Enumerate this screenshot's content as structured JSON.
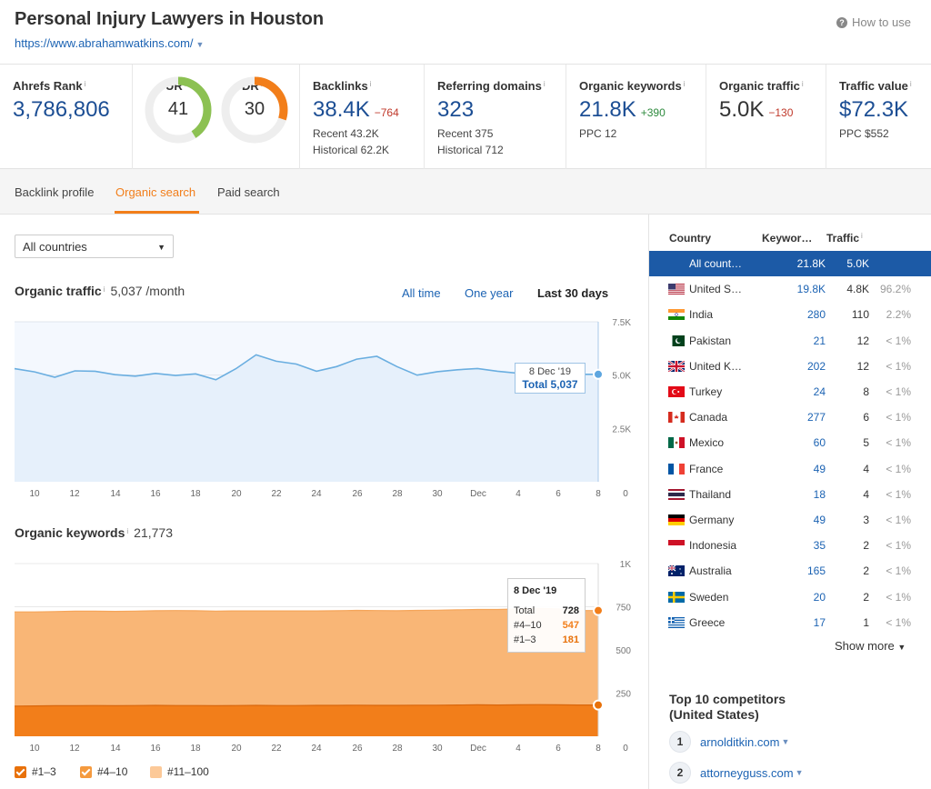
{
  "header": {
    "title": "Personal Injury Lawyers in Houston",
    "url": "https://www.abrahamwatkins.com/",
    "how_to_use": "How to use"
  },
  "metrics": {
    "ahrefs_rank": {
      "label": "Ahrefs Rank",
      "value": "3,786,806"
    },
    "ur": {
      "label": "UR",
      "value": "41",
      "score": 41,
      "color": "#8cc152"
    },
    "dr": {
      "label": "DR",
      "value": "30",
      "score": 30,
      "color": "#f27e1a"
    },
    "backlinks": {
      "label": "Backlinks",
      "value": "38.4K",
      "delta": "−764",
      "recent": "Recent 43.2K",
      "historical": "Historical 62.2K"
    },
    "referring_domains": {
      "label": "Referring domains",
      "value": "323",
      "recent": "Recent 375",
      "historical": "Historical 712"
    },
    "organic_keywords": {
      "label": "Organic keywords",
      "value": "21.8K",
      "delta": "+390",
      "ppc": "PPC 12"
    },
    "organic_traffic": {
      "label": "Organic traffic",
      "value": "5.0K",
      "delta": "−130"
    },
    "traffic_value": {
      "label": "Traffic value",
      "value": "$72.3K",
      "ppc": "PPC $552"
    }
  },
  "tabs": [
    {
      "label": "Backlink profile"
    },
    {
      "label": "Organic search",
      "active": true
    },
    {
      "label": "Paid search"
    }
  ],
  "filter": {
    "country_select": "All countries"
  },
  "traffic_section": {
    "title": "Organic traffic",
    "value": "5,037 /month",
    "ranges": [
      "All time",
      "One year",
      "Last 30 days"
    ],
    "selected_range": "Last 30 days",
    "tooltip_date": "8 Dec '19",
    "tooltip_total": "Total 5,037"
  },
  "keywords_section": {
    "title": "Organic keywords",
    "value": "21,773",
    "tooltip_date": "8 Dec '19",
    "tooltip_rows": [
      {
        "label": "Total",
        "value": "728",
        "color": "#222"
      },
      {
        "label": "#4–10",
        "value": "547",
        "color": "#f27e1a"
      },
      {
        "label": "#1–3",
        "value": "181",
        "color": "#e8710a"
      }
    ],
    "legend": [
      "#1–3",
      "#4–10",
      "#11–100"
    ]
  },
  "chart_data": [
    {
      "type": "area",
      "title": "Organic traffic",
      "x": [
        "9",
        "10",
        "11",
        "12",
        "13",
        "14",
        "15",
        "16",
        "17",
        "18",
        "19",
        "20",
        "21",
        "22",
        "23",
        "24",
        "25",
        "26",
        "27",
        "28",
        "29",
        "30",
        "Dec 1",
        "2",
        "3",
        "4",
        "5",
        "6",
        "7",
        "8"
      ],
      "x_ticks": [
        "10",
        "12",
        "14",
        "16",
        "18",
        "20",
        "22",
        "24",
        "26",
        "28",
        "30",
        "Dec",
        "4",
        "6",
        "8",
        "0"
      ],
      "y_ticks": [
        "7.5K",
        "5.0K",
        "2.5K"
      ],
      "ylim": [
        0,
        7500
      ],
      "series": [
        {
          "values": [
            5300,
            5150,
            4900,
            5200,
            5180,
            5020,
            4950,
            5080,
            4980,
            5060,
            4780,
            5300,
            5950,
            5650,
            5520,
            5180,
            5400,
            5750,
            5880,
            5400,
            5000,
            5160,
            5250,
            5310,
            5180,
            5090,
            5037,
            5037,
            5037,
            5037
          ],
          "color": "#6aaee0"
        }
      ]
    },
    {
      "type": "area",
      "title": "Organic keywords",
      "x": [
        "9",
        "10",
        "11",
        "12",
        "13",
        "14",
        "15",
        "16",
        "17",
        "18",
        "19",
        "20",
        "21",
        "22",
        "23",
        "24",
        "25",
        "26",
        "27",
        "28",
        "29",
        "30",
        "Dec 1",
        "2",
        "3",
        "4",
        "5",
        "6",
        "7",
        "8"
      ],
      "x_ticks": [
        "10",
        "12",
        "14",
        "16",
        "18",
        "20",
        "22",
        "24",
        "26",
        "28",
        "30",
        "Dec",
        "4",
        "6",
        "8",
        "0"
      ],
      "y_ticks": [
        "1K",
        "750",
        "500",
        "250"
      ],
      "ylim": [
        0,
        1000
      ],
      "series": [
        {
          "name": "#1–3",
          "values": [
            175,
            176,
            177,
            177,
            178,
            177,
            178,
            179,
            178,
            178,
            177,
            178,
            179,
            178,
            178,
            179,
            179,
            180,
            179,
            179,
            180,
            180,
            181,
            182,
            181,
            182,
            183,
            182,
            181,
            181
          ],
          "color": "#f27e1a"
        },
        {
          "name": "#4–10",
          "values": [
            545,
            544,
            545,
            547,
            546,
            546,
            547,
            548,
            550,
            549,
            548,
            548,
            547,
            548,
            548,
            547,
            548,
            549,
            549,
            548,
            549,
            550,
            551,
            552,
            553,
            555,
            557,
            556,
            547,
            547
          ],
          "color": "#f9b676"
        },
        {
          "name": "#11–100",
          "values": [
            0,
            0,
            0,
            0,
            0,
            0,
            0,
            0,
            0,
            0,
            0,
            0,
            0,
            0,
            0,
            0,
            0,
            0,
            0,
            0,
            0,
            0,
            0,
            0,
            0,
            0,
            0,
            0,
            0,
            0
          ],
          "color": "#fcd9b8"
        }
      ]
    }
  ],
  "countries_table": {
    "headers": [
      "Country",
      "Keywor…",
      "Traffic"
    ],
    "rows": [
      {
        "flag": "none",
        "name": "All count…",
        "keywords": "21.8K",
        "traffic": "5.0K",
        "pct": "",
        "selected": true
      },
      {
        "flag": "us",
        "name": "United S…",
        "keywords": "19.8K",
        "traffic": "4.8K",
        "pct": "96.2%"
      },
      {
        "flag": "in",
        "name": "India",
        "keywords": "280",
        "traffic": "110",
        "pct": "2.2%"
      },
      {
        "flag": "pk",
        "name": "Pakistan",
        "keywords": "21",
        "traffic": "12",
        "pct": "< 1%"
      },
      {
        "flag": "gb",
        "name": "United K…",
        "keywords": "202",
        "traffic": "12",
        "pct": "< 1%"
      },
      {
        "flag": "tr",
        "name": "Turkey",
        "keywords": "24",
        "traffic": "8",
        "pct": "< 1%"
      },
      {
        "flag": "ca",
        "name": "Canada",
        "keywords": "277",
        "traffic": "6",
        "pct": "< 1%"
      },
      {
        "flag": "mx",
        "name": "Mexico",
        "keywords": "60",
        "traffic": "5",
        "pct": "< 1%"
      },
      {
        "flag": "fr",
        "name": "France",
        "keywords": "49",
        "traffic": "4",
        "pct": "< 1%"
      },
      {
        "flag": "th",
        "name": "Thailand",
        "keywords": "18",
        "traffic": "4",
        "pct": "< 1%"
      },
      {
        "flag": "de",
        "name": "Germany",
        "keywords": "49",
        "traffic": "3",
        "pct": "< 1%"
      },
      {
        "flag": "id",
        "name": "Indonesia",
        "keywords": "35",
        "traffic": "2",
        "pct": "< 1%"
      },
      {
        "flag": "au",
        "name": "Australia",
        "keywords": "165",
        "traffic": "2",
        "pct": "< 1%"
      },
      {
        "flag": "se",
        "name": "Sweden",
        "keywords": "20",
        "traffic": "2",
        "pct": "< 1%"
      },
      {
        "flag": "gr",
        "name": "Greece",
        "keywords": "17",
        "traffic": "1",
        "pct": "< 1%"
      }
    ],
    "show_more": "Show more"
  },
  "competitors": {
    "title_line1": "Top 10 competitors",
    "title_line2": "(United States)",
    "items": [
      {
        "rank": "1",
        "domain": "arnolditkin.com"
      },
      {
        "rank": "2",
        "domain": "attorneyguss.com"
      }
    ]
  }
}
